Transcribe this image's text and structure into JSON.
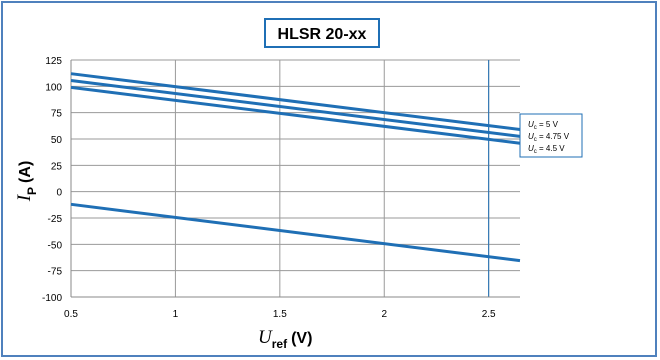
{
  "chart_data": {
    "type": "line",
    "title": "HLSR 20-xx",
    "ylabel": {
      "symbol": "I",
      "subscript": "P",
      "unit": "(A)"
    },
    "xlabel": {
      "symbol": "U",
      "subscript": "ref",
      "unit": "(V)"
    },
    "xlim": [
      0.5,
      2.65
    ],
    "ylim": [
      -100,
      125
    ],
    "xticks": [
      "0.5",
      "1",
      "1.5",
      "2",
      "2.5"
    ],
    "yticks": [
      "125",
      "100",
      "75",
      "50",
      "25",
      "0",
      "-25",
      "-50",
      "-75",
      "-100"
    ],
    "xtick_values": [
      0.5,
      1,
      1.5,
      2,
      2.5
    ],
    "ytick_values": [
      125,
      100,
      75,
      50,
      25,
      0,
      -25,
      -50,
      -75,
      -100
    ],
    "grid": true,
    "legend_position": "right",
    "marker_x": 2.5,
    "series": [
      {
        "name": "Uc = 5 V",
        "legend_symbol": "U",
        "legend_sub": "c",
        "legend_text": " = 5 V",
        "color": "#1f6fb5",
        "x": [
          0.5,
          2.65
        ],
        "y": [
          112,
          59
        ]
      },
      {
        "name": "Uc = 4.75 V",
        "legend_symbol": "U",
        "legend_sub": "c",
        "legend_text": " = 4.75 V",
        "color": "#1f6fb5",
        "x": [
          0.5,
          2.65
        ],
        "y": [
          105.5,
          52.5
        ]
      },
      {
        "name": "Uc = 4.5 V",
        "legend_symbol": "U",
        "legend_sub": "c",
        "legend_text": " = 4.5 V",
        "color": "#1f6fb5",
        "x": [
          0.5,
          2.65
        ],
        "y": [
          99,
          46
        ]
      },
      {
        "color": "#1f6fb5",
        "x": [
          0.5,
          2.65
        ],
        "y": [
          -12,
          -65.5
        ]
      }
    ]
  }
}
